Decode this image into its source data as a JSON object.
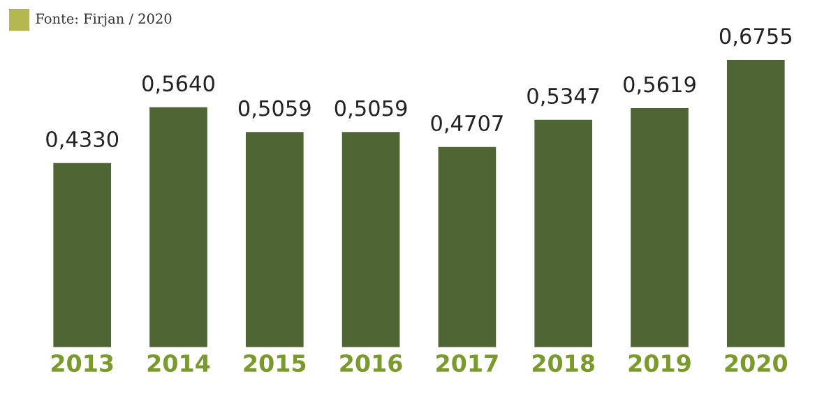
{
  "chart_data": {
    "type": "bar",
    "categories": [
      "2013",
      "2014",
      "2015",
      "2016",
      "2017",
      "2018",
      "2019",
      "2020"
    ],
    "values": [
      0.433,
      0.564,
      0.5059,
      0.5059,
      0.4707,
      0.5347,
      0.5619,
      0.6755
    ],
    "value_labels": [
      "0,4330",
      "0,5640",
      "0,5059",
      "0,5059",
      "0,4707",
      "0,5347",
      "0,5619",
      "0,6755"
    ],
    "color": "#4f6534",
    "annotations": [
      "Fonte: Firjan / 2020"
    ],
    "grid": false,
    "legend": false
  }
}
